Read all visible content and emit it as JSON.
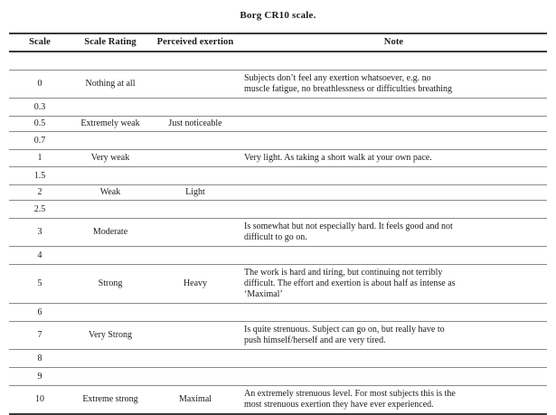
{
  "title": "Borg CR10 scale.",
  "colors": {
    "text": "#1a1a1a",
    "rule_thick": "#3a3a3a",
    "rule_thin": "#8a8a8a",
    "background": "#ffffff"
  },
  "table": {
    "headers": [
      "Scale",
      "Scale Rating",
      "Perceived exertion",
      "Note"
    ],
    "rows": [
      [
        "",
        "",
        "",
        ""
      ],
      [
        "0",
        "Nothing at all",
        "",
        "Subjects don’t feel any exertion whatsoever, e.g. no muscle fatigue, no breathlessness or difficulties breathing"
      ],
      [
        "0.3",
        "",
        "",
        ""
      ],
      [
        "0.5",
        "Extremely weak",
        "Just noticeable",
        ""
      ],
      [
        "0.7",
        "",
        "",
        ""
      ],
      [
        "1",
        "Very weak",
        "",
        "Very light. As taking a short walk at your own pace."
      ],
      [
        "1.5",
        "",
        "",
        ""
      ],
      [
        "2",
        "Weak",
        "Light",
        ""
      ],
      [
        "2.5",
        "",
        "",
        ""
      ],
      [
        "3",
        "Moderate",
        "",
        "Is somewhat but not especially hard. It feels good and not difficult to go on."
      ],
      [
        "4",
        "",
        "",
        ""
      ],
      [
        "5",
        "Strong",
        "Heavy",
        "The work is hard and tiring, but continuing not terribly difficult. The effort and exertion is about half as intense as ‘Maximal’"
      ],
      [
        "6",
        "",
        "",
        ""
      ],
      [
        "7",
        "Very Strong",
        "",
        "Is quite strenuous. Subject can go on, but really have to push himself/herself and are very tired."
      ],
      [
        "8",
        "",
        "",
        ""
      ],
      [
        "9",
        "",
        "",
        ""
      ],
      [
        "10",
        "Extreme strong",
        "Maximal",
        "An extremely strenuous level. For most subjects this is the most strenuous exertion they have ever experienced."
      ]
    ]
  }
}
